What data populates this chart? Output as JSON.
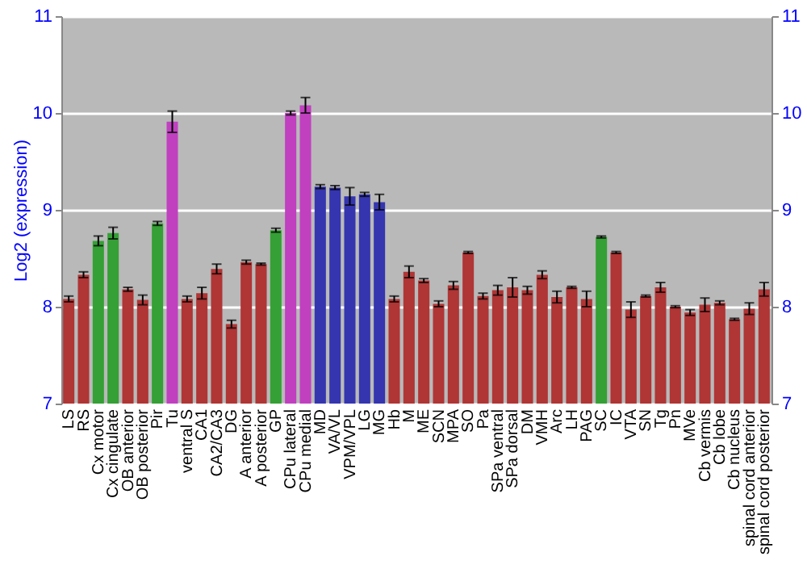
{
  "chart_data": {
    "type": "bar",
    "ylabel": "Log2 (expression)",
    "categories": [
      "LS",
      "RS",
      "Cx motor",
      "Cx cingulate",
      "OB anterior",
      "OB posterior",
      "Pir",
      "Tu",
      "ventral S",
      "CA1",
      "CA2/CA3",
      "DG",
      "A anterior",
      "A posterior",
      "GP",
      "CPu lateral",
      "CPu medial",
      "MD",
      "VA/VL",
      "VPM/VPL",
      "LG",
      "MG",
      "Hb",
      "M",
      "ME",
      "SCN",
      "MPA",
      "SO",
      "Pa",
      "SPa ventral",
      "SPa dorsal",
      "DM",
      "VMH",
      "Arc",
      "LH",
      "PAG",
      "SC",
      "IC",
      "VTA",
      "SN",
      "Tg",
      "Pn",
      "MVe",
      "Cb vermis",
      "Cb lobe",
      "Cb nucleus",
      "spinal cord anterior",
      "spinal cord posterior"
    ],
    "values": [
      8.08,
      8.33,
      8.68,
      8.76,
      8.18,
      8.07,
      8.86,
      9.91,
      8.08,
      8.14,
      8.39,
      7.82,
      8.46,
      8.44,
      8.79,
      10.0,
      10.08,
      9.24,
      9.23,
      9.14,
      9.16,
      9.08,
      8.08,
      8.36,
      8.27,
      8.03,
      8.22,
      8.56,
      8.11,
      8.17,
      8.2,
      8.17,
      8.33,
      8.1,
      8.2,
      8.08,
      8.72,
      8.56,
      7.97,
      8.11,
      8.2,
      8.0,
      7.94,
      8.02,
      8.04,
      7.87,
      7.98,
      8.18
    ],
    "errors": [
      0.03,
      0.03,
      0.05,
      0.06,
      0.02,
      0.05,
      0.02,
      0.11,
      0.03,
      0.06,
      0.05,
      0.04,
      0.02,
      0.01,
      0.02,
      0.02,
      0.08,
      0.02,
      0.02,
      0.09,
      0.02,
      0.08,
      0.03,
      0.06,
      0.02,
      0.03,
      0.04,
      0.01,
      0.03,
      0.05,
      0.1,
      0.04,
      0.04,
      0.06,
      0.01,
      0.08,
      0.01,
      0.01,
      0.08,
      0.01,
      0.05,
      0.01,
      0.03,
      0.07,
      0.02,
      0.01,
      0.06,
      0.07
    ],
    "colors": [
      "#b03535",
      "#b03535",
      "#35a035",
      "#35a035",
      "#b03535",
      "#b03535",
      "#35a035",
      "#c040c0",
      "#b03535",
      "#b03535",
      "#b03535",
      "#b03535",
      "#b03535",
      "#b03535",
      "#35a035",
      "#c040c0",
      "#c040c0",
      "#3535b0",
      "#3535b0",
      "#3535b0",
      "#3535b0",
      "#3535b0",
      "#b03535",
      "#b03535",
      "#b03535",
      "#b03535",
      "#b03535",
      "#b03535",
      "#b03535",
      "#b03535",
      "#b03535",
      "#b03535",
      "#b03535",
      "#b03535",
      "#b03535",
      "#b03535",
      "#35a035",
      "#b03535",
      "#b03535",
      "#b03535",
      "#b03535",
      "#b03535",
      "#b03535",
      "#b03535",
      "#b03535",
      "#b03535",
      "#b03535",
      "#b03535"
    ],
    "ylim": [
      7,
      11
    ],
    "yticks": [
      7,
      8,
      9,
      10,
      11
    ],
    "y2lim": [
      7,
      11
    ],
    "y2ticks": [
      7,
      8,
      9,
      10,
      11
    ],
    "grid": "y"
  }
}
